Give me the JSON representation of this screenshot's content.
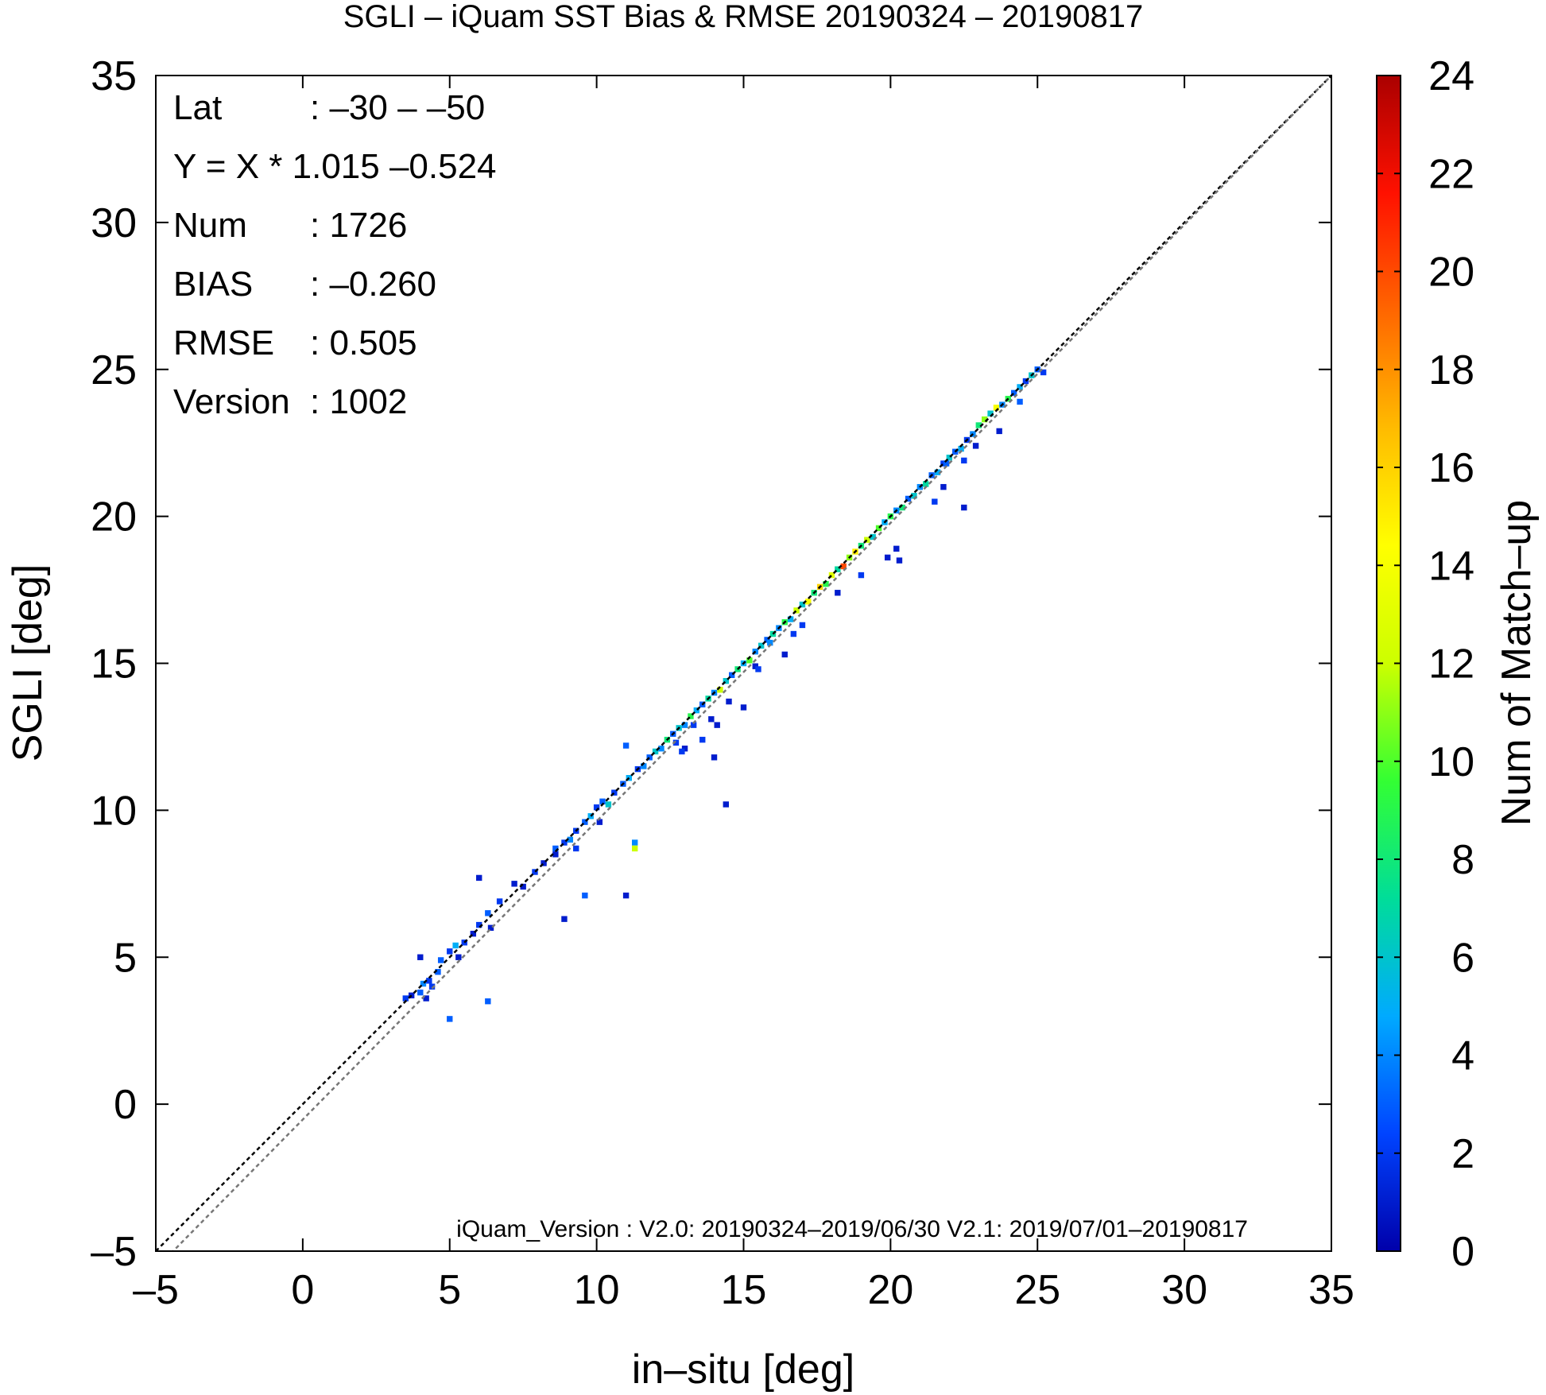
{
  "chart_data": {
    "type": "heatmap",
    "title": "SGLI – iQuam  SST Bias & RMSE 20190324 – 20190817",
    "xlabel": "in–situ [deg]",
    "ylabel": "SGLI [deg]",
    "xlim": [
      -5,
      35
    ],
    "ylim": [
      -5,
      35
    ],
    "x_ticks": [
      -5,
      0,
      5,
      10,
      15,
      20,
      25,
      30,
      35
    ],
    "y_ticks": [
      -5,
      0,
      5,
      10,
      15,
      20,
      25,
      30,
      35
    ],
    "x_tick_labels": [
      "–5",
      "0",
      "5",
      "10",
      "15",
      "20",
      "25",
      "30",
      "35"
    ],
    "y_tick_labels": [
      "–5",
      "0",
      "5",
      "10",
      "15",
      "20",
      "25",
      "30",
      "35"
    ],
    "grid": false,
    "reference_lines": [
      {
        "label": "1:1",
        "slope": 1.0,
        "intercept": 0.0,
        "color": "#000000"
      },
      {
        "label": "regression",
        "slope": 1.015,
        "intercept": -0.524,
        "color": "#777777"
      }
    ],
    "stats": [
      {
        "key": "Lat",
        "value": ": –30 – –50"
      },
      {
        "key": "Y = X * 1.015 –0.524",
        "value": ""
      },
      {
        "key": "Num",
        "value": ": 1726"
      },
      {
        "key": "BIAS",
        "value": ": –0.260"
      },
      {
        "key": "RMSE",
        "value": ": 0.505"
      },
      {
        "key": "Version",
        "value": ": 1002"
      }
    ],
    "footnote": "iQuam_Version : V2.0: 20190324–2019/06/30 V2.1: 2019/07/01–20190817",
    "colorbar": {
      "label": "Num of Match–up",
      "min": 0,
      "max": 24,
      "ticks": [
        0,
        2,
        4,
        6,
        8,
        10,
        12,
        14,
        16,
        18,
        20,
        22,
        24
      ],
      "position": "right",
      "colors": [
        "#0000aa",
        "#0044ff",
        "#00aaff",
        "#00dd99",
        "#33ff33",
        "#ccff00",
        "#ffff00",
        "#ffbb00",
        "#ff6600",
        "#ff1100",
        "#aa0000"
      ]
    },
    "bin_size": 0.2,
    "cells": [
      [
        3.5,
        3.6,
        2
      ],
      [
        3.7,
        3.7,
        1
      ],
      [
        4.0,
        3.8,
        3
      ],
      [
        4.1,
        4.1,
        4
      ],
      [
        4.3,
        4.2,
        2
      ],
      [
        4.2,
        3.6,
        1
      ],
      [
        4.0,
        5.0,
        1
      ],
      [
        4.7,
        4.9,
        3
      ],
      [
        5.0,
        5.2,
        2
      ],
      [
        5.2,
        5.4,
        5
      ],
      [
        5.5,
        5.5,
        2
      ],
      [
        5.8,
        5.8,
        1
      ],
      [
        6.0,
        6.1,
        2
      ],
      [
        6.3,
        6.5,
        3
      ],
      [
        6.7,
        6.9,
        2
      ],
      [
        7.2,
        7.5,
        1
      ],
      [
        7.5,
        7.4,
        1
      ],
      [
        7.9,
        7.9,
        2
      ],
      [
        8.2,
        8.2,
        1
      ],
      [
        8.6,
        8.7,
        3
      ],
      [
        8.9,
        8.9,
        2
      ],
      [
        9.1,
        9.0,
        4
      ],
      [
        9.3,
        9.3,
        2
      ],
      [
        9.6,
        9.6,
        3
      ],
      [
        9.8,
        9.8,
        5
      ],
      [
        10.0,
        10.1,
        2
      ],
      [
        10.2,
        10.3,
        3
      ],
      [
        10.4,
        10.2,
        6
      ],
      [
        10.6,
        10.6,
        2
      ],
      [
        10.9,
        10.9,
        3
      ],
      [
        11.1,
        11.1,
        5
      ],
      [
        11.4,
        11.4,
        2
      ],
      [
        11.6,
        11.5,
        4
      ],
      [
        11.8,
        11.8,
        3
      ],
      [
        12.0,
        12.0,
        6
      ],
      [
        12.2,
        12.1,
        4
      ],
      [
        12.4,
        12.4,
        8
      ],
      [
        12.6,
        12.6,
        3
      ],
      [
        12.8,
        12.8,
        6
      ],
      [
        12.7,
        12.3,
        2
      ],
      [
        13.0,
        12.9,
        4
      ],
      [
        13.2,
        13.2,
        9
      ],
      [
        13.4,
        13.4,
        5
      ],
      [
        13.6,
        13.6,
        3
      ],
      [
        13.3,
        12.9,
        2
      ],
      [
        13.8,
        13.8,
        7
      ],
      [
        14.0,
        14.0,
        4
      ],
      [
        14.2,
        14.1,
        12
      ],
      [
        14.4,
        14.4,
        6
      ],
      [
        14.6,
        14.6,
        3
      ],
      [
        14.8,
        14.8,
        8
      ],
      [
        15.0,
        15.0,
        5
      ],
      [
        15.2,
        15.1,
        10
      ],
      [
        15.4,
        15.4,
        4
      ],
      [
        15.6,
        15.6,
        6
      ],
      [
        15.8,
        15.8,
        3
      ],
      [
        16.0,
        16.0,
        7
      ],
      [
        16.2,
        16.2,
        4
      ],
      [
        16.4,
        16.4,
        9
      ],
      [
        16.6,
        16.5,
        5
      ],
      [
        16.8,
        16.8,
        12
      ],
      [
        17.0,
        17.0,
        6
      ],
      [
        17.2,
        17.1,
        14
      ],
      [
        17.4,
        17.4,
        8
      ],
      [
        17.6,
        17.6,
        16
      ],
      [
        17.8,
        17.7,
        9
      ],
      [
        18.0,
        18.0,
        13
      ],
      [
        18.2,
        18.2,
        7
      ],
      [
        18.4,
        18.3,
        20
      ],
      [
        18.6,
        18.6,
        11
      ],
      [
        18.8,
        18.8,
        15
      ],
      [
        19.0,
        19.0,
        8
      ],
      [
        19.2,
        19.2,
        12
      ],
      [
        19.4,
        19.3,
        6
      ],
      [
        19.6,
        19.6,
        10
      ],
      [
        19.8,
        19.8,
        5
      ],
      [
        20.0,
        20.0,
        9
      ],
      [
        20.2,
        20.2,
        4
      ],
      [
        20.4,
        20.3,
        8
      ],
      [
        20.6,
        20.6,
        3
      ],
      [
        20.8,
        20.7,
        6
      ],
      [
        21.0,
        21.0,
        4
      ],
      [
        21.2,
        21.1,
        7
      ],
      [
        21.4,
        21.4,
        3
      ],
      [
        21.6,
        21.5,
        5
      ],
      [
        21.8,
        21.8,
        2
      ],
      [
        22.0,
        22.0,
        6
      ],
      [
        22.2,
        22.2,
        3
      ],
      [
        22.4,
        22.3,
        5
      ],
      [
        22.6,
        22.6,
        2
      ],
      [
        22.8,
        22.8,
        4
      ],
      [
        23.0,
        23.1,
        8
      ],
      [
        23.2,
        23.3,
        11
      ],
      [
        23.4,
        23.5,
        6
      ],
      [
        23.6,
        23.7,
        14
      ],
      [
        23.8,
        23.8,
        4
      ],
      [
        24.0,
        24.0,
        9
      ],
      [
        24.2,
        24.2,
        3
      ],
      [
        24.4,
        24.4,
        5
      ],
      [
        24.6,
        24.6,
        2
      ],
      [
        24.8,
        24.8,
        6
      ],
      [
        25.0,
        25.0,
        3
      ],
      [
        25.2,
        24.9,
        2
      ],
      [
        22.5,
        20.3,
        1
      ],
      [
        20.3,
        18.5,
        1
      ],
      [
        14.5,
        13.7,
        1
      ],
      [
        15.0,
        13.5,
        1
      ],
      [
        14.1,
        12.9,
        1
      ],
      [
        13.6,
        12.4,
        2
      ],
      [
        14.0,
        11.8,
        1
      ],
      [
        13.0,
        12.1,
        1
      ],
      [
        14.4,
        10.2,
        1
      ],
      [
        11.0,
        12.2,
        3
      ],
      [
        11.3,
        8.9,
        4
      ],
      [
        11.3,
        8.7,
        12
      ],
      [
        11.0,
        7.1,
        1
      ],
      [
        9.6,
        7.1,
        3
      ],
      [
        8.9,
        6.3,
        1
      ],
      [
        6.0,
        7.7,
        1
      ],
      [
        6.3,
        3.5,
        3
      ],
      [
        5.0,
        2.9,
        3
      ],
      [
        15.4,
        14.9,
        1
      ],
      [
        16.4,
        15.3,
        1
      ],
      [
        17.0,
        16.3,
        2
      ],
      [
        19.9,
        18.6,
        1
      ],
      [
        20.2,
        18.9,
        1
      ],
      [
        21.9,
        21.8,
        3
      ],
      [
        22.5,
        21.9,
        2
      ],
      [
        22.9,
        22.4,
        1
      ],
      [
        23.7,
        22.9,
        1
      ],
      [
        24.4,
        23.9,
        3
      ],
      [
        21.5,
        20.5,
        2
      ],
      [
        21.8,
        21.0,
        1
      ],
      [
        19.0,
        18.0,
        2
      ],
      [
        18.2,
        17.4,
        1
      ],
      [
        16.7,
        16.0,
        2
      ],
      [
        15.9,
        15.7,
        4
      ],
      [
        15.5,
        14.8,
        2
      ],
      [
        13.9,
        13.1,
        1
      ],
      [
        12.9,
        12.0,
        2
      ],
      [
        10.1,
        9.6,
        1
      ],
      [
        9.3,
        8.7,
        2
      ],
      [
        8.6,
        8.5,
        1
      ],
      [
        4.4,
        4.0,
        2
      ],
      [
        4.6,
        4.5,
        3
      ],
      [
        5.3,
        5.0,
        1
      ],
      [
        6.4,
        6.0,
        1
      ]
    ]
  }
}
